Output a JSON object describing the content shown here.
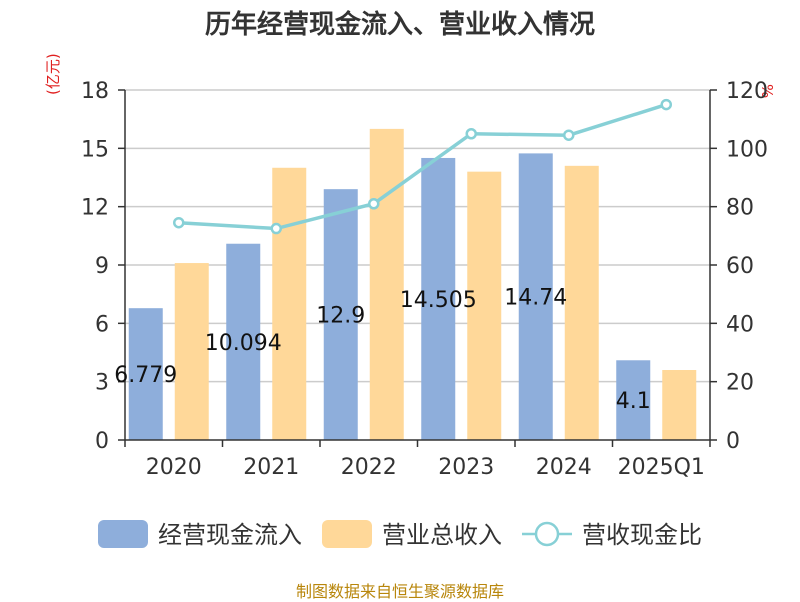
{
  "title": "历年经营现金流入、营业收入情况",
  "left_unit": "(亿元)",
  "right_unit": "%",
  "source": "制图数据来自恒生聚源数据库",
  "colors": {
    "cash_inflow": "#8eaedb",
    "revenue": "#ffd899",
    "ratio": "#87d0d6",
    "axis_unit": "#e02020",
    "source": "#b8860b"
  },
  "chart_data": {
    "type": "bar",
    "title": "历年经营现金流入、营业收入情况",
    "categories": [
      "2020",
      "2021",
      "2022",
      "2023",
      "2024",
      "2025Q1"
    ],
    "series": [
      {
        "name": "经营现金流入",
        "type": "bar",
        "axis": "left",
        "values": [
          6.779,
          10.094,
          12.9,
          14.505,
          14.74,
          4.1
        ],
        "labels": [
          "6.779",
          "10.094",
          "12.9",
          "14.505",
          "14.74",
          "4.1"
        ]
      },
      {
        "name": "营业总收入",
        "type": "bar",
        "axis": "left",
        "values": [
          9.1,
          14.0,
          16.0,
          13.8,
          14.1,
          3.6
        ]
      },
      {
        "name": "营收现金比",
        "type": "line",
        "axis": "right",
        "values": [
          74.5,
          72.5,
          81,
          105,
          104.5,
          115
        ]
      }
    ],
    "ylim_left": [
      0,
      18
    ],
    "yticks_left": [
      0,
      3,
      6,
      9,
      12,
      15,
      18
    ],
    "ylim_right": [
      0,
      120
    ],
    "yticks_right": [
      0,
      20,
      40,
      60,
      80,
      100,
      120
    ],
    "ylabel_left": "(亿元)",
    "ylabel_right": "%",
    "grid": true,
    "legend_position": "bottom"
  }
}
